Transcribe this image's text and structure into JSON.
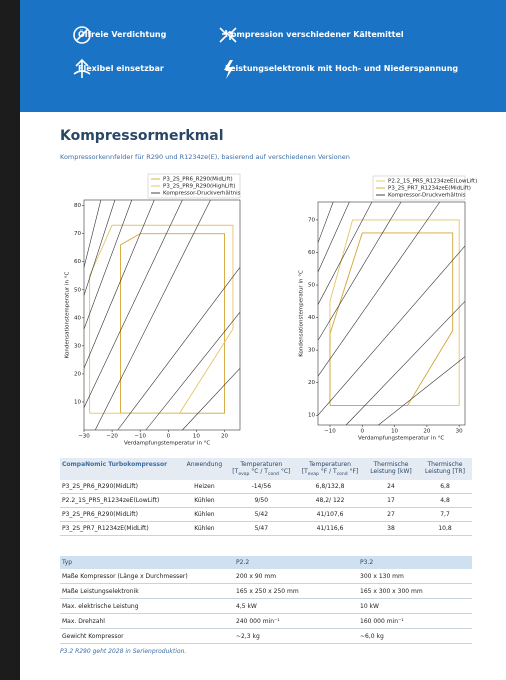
{
  "banner": {
    "features": [
      "Ölfreie Verdichtung",
      "Kompression verschiedener Kältemittel",
      "Flexibel einsetzbar",
      "Leistungselektronik mit Hoch- und Niederspannung"
    ]
  },
  "section": {
    "title": "Kompressormerkmal",
    "subtitle": "Kompressorkennfelder für R290 und R1234ze(E), basierend auf verschiedenen Versionen"
  },
  "chart_data": [
    {
      "type": "line",
      "xlabel": "Verdampfungstemperatur in °C",
      "ylabel": "Kondensationstemperatur in °C",
      "xlim": [
        -30,
        25.5
      ],
      "ylim": [
        0,
        82
      ],
      "xticks": [
        {
          "value": -30,
          "label": "−30"
        },
        {
          "value": -20,
          "label": "−20"
        },
        {
          "value": -10,
          "label": "−10"
        },
        0,
        10,
        20
      ],
      "yticks": [
        10,
        20,
        30,
        40,
        50,
        60,
        70,
        80
      ],
      "legend": "top-right",
      "grid": false,
      "series": [
        {
          "name": "P3_2S_PR6_R290(MidLift)",
          "color": "#d4a531",
          "x": [
            -17,
            -17,
            -10,
            20,
            20,
            -17
          ],
          "values": [
            6,
            66,
            70,
            70,
            6,
            6
          ]
        },
        {
          "name": "P3_2S_PR9_R290(HighLift)",
          "color": "#e3c466",
          "x": [
            -28,
            -28,
            -20,
            23,
            23,
            4,
            -28
          ],
          "values": [
            6,
            55,
            73,
            73,
            36,
            6,
            6
          ]
        },
        {
          "name": "Kompressor-Druckverhältnis",
          "color": "#333333",
          "x": [
            5,
            25.5,
            null,
            -8,
            25.5,
            null,
            -18,
            25.5,
            null,
            -26,
            15,
            null,
            -30,
            5,
            null,
            -30,
            -5,
            null,
            -30,
            -13,
            null,
            -30,
            -19,
            null,
            -30,
            -24
          ],
          "values": [
            0,
            22,
            null,
            0,
            42,
            null,
            0,
            58,
            null,
            0,
            82,
            null,
            8,
            82,
            null,
            22,
            82,
            null,
            36,
            82,
            null,
            48,
            82,
            null,
            58,
            82
          ]
        }
      ]
    },
    {
      "type": "line",
      "xlabel": "Verdampfungstemperatur in °C",
      "ylabel": "Kondensationstemperatur in °C",
      "xlim": [
        -13.7,
        31.8
      ],
      "ylim": [
        7,
        75.5
      ],
      "xticks": [
        {
          "value": -10,
          "label": "−10"
        },
        0,
        10,
        20,
        30
      ],
      "yticks": [
        10,
        20,
        30,
        40,
        50,
        60,
        70
      ],
      "legend": "top-right",
      "grid": false,
      "series": [
        {
          "name": "P2.2_1S_PR5_R1234zeE(LowLift)",
          "color": "#e3c466",
          "x": [
            -10,
            -10,
            -3,
            30,
            30,
            -10
          ],
          "values": [
            13,
            45,
            70,
            70,
            13,
            13
          ]
        },
        {
          "name": "P3_2S_PR7_R1234zeE(MidLift)",
          "color": "#d4a531",
          "x": [
            -10,
            -10,
            0,
            28,
            28,
            14,
            -10
          ],
          "values": [
            13,
            35,
            66,
            66,
            36,
            13,
            13
          ]
        },
        {
          "name": "Kompressor-Druckverhältnis",
          "color": "#333333",
          "x": [
            5,
            31.8,
            null,
            -5,
            31.8,
            null,
            -13.7,
            31.8,
            null,
            -13.7,
            24,
            null,
            -13.7,
            12,
            null,
            -13.7,
            3,
            null,
            -13.7,
            -4,
            null,
            -13.7,
            -9
          ],
          "values": [
            7,
            28,
            null,
            7,
            45,
            null,
            10,
            62,
            null,
            22,
            75.5,
            null,
            33,
            75.5,
            null,
            44,
            75.5,
            null,
            54,
            75.5,
            null,
            63,
            75.5
          ]
        }
      ]
    }
  ],
  "table1": {
    "header": {
      "name": "CompaNomic Turbokompressor",
      "application": "Anwendung",
      "temp_c": {
        "title": "Temperaturen",
        "open": "[T",
        "sub1": "evap",
        "mid": " °C / T",
        "sub2": "cond",
        "close": " °C]"
      },
      "temp_f": {
        "title": "Temperaturen",
        "open": "[T",
        "sub1": "evap",
        "mid": " °F / T",
        "sub2": "cond",
        "close": " °F]"
      },
      "kw": "Thermische Leistung [kW]",
      "tr": "Thermische Leistung [TR]"
    },
    "rows": [
      [
        "P3_2S_PR6_R290(MidLift)",
        "Heizen",
        "-14/56",
        "6,8/132,8",
        "24",
        "6,8"
      ],
      [
        "P2.2_1S_PR5_R1234zeE(LowLift)",
        "Kühlen",
        "9/50",
        "48,2/ 122",
        "17",
        "4,8"
      ],
      [
        "P3_2S_PR6_R290(MidLift)",
        "Kühlen",
        "5/42",
        "41/107,6",
        "27",
        "7,7"
      ],
      [
        "P3_2S_PR7_R1234zE(MidLift)",
        "Kühlen",
        "5/47",
        "41/116,6",
        "38",
        "10,8"
      ]
    ]
  },
  "table2": {
    "header": [
      "Typ",
      "P2.2",
      "P3.2"
    ],
    "rows": [
      [
        "Maße Kompressor (Länge x Durchmesser)",
        "200 x 90 mm",
        "300 x 130 mm"
      ],
      [
        "Maße Leistungselektronik",
        "165 x 250 x 250 mm",
        "165 x 300 x 300 mm"
      ],
      [
        "Max. elektrische Leistung",
        "4,5 kW",
        "10 kW"
      ],
      [
        "Max. Drehzahl",
        "240 000 min⁻¹",
        "160 000 min⁻¹"
      ],
      [
        "Gewicht Kompressor",
        "~2,3 kg",
        "~6,0 kg"
      ]
    ]
  },
  "footnote": "P3.2 R290 geht 2028 in Serienproduktion."
}
